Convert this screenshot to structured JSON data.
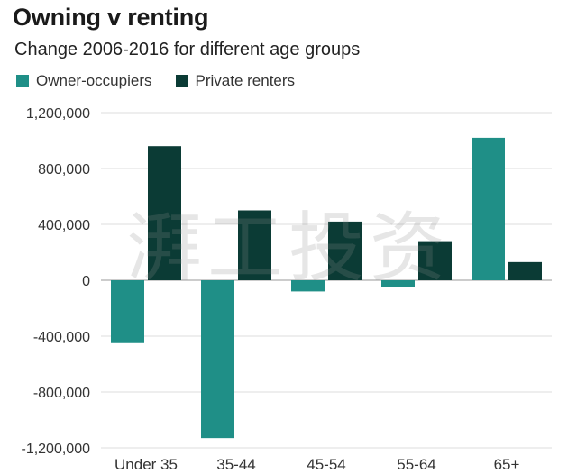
{
  "chart_data": {
    "type": "bar",
    "title": "Owning v renting",
    "subtitle": "Change 2006-2016 for different age groups",
    "categories": [
      "Under 35",
      "35-44",
      "45-54",
      "55-64",
      "65+"
    ],
    "series": [
      {
        "name": "Owner-occupiers",
        "color": "#1f8f87",
        "values": [
          -450000,
          -1130000,
          -80000,
          -50000,
          1020000
        ]
      },
      {
        "name": "Private renters",
        "color": "#0b3b35",
        "values": [
          960000,
          500000,
          420000,
          280000,
          130000
        ]
      }
    ],
    "ylim": [
      -1200000,
      1200000
    ],
    "yticks": [
      1200000,
      800000,
      400000,
      0,
      -400000,
      -800000,
      -1200000
    ],
    "ytick_labels": [
      "1,200,000",
      "800,000",
      "400,000",
      "0",
      "-400,000",
      "-800,000",
      "-1,200,000"
    ],
    "xlabel": "",
    "ylabel": "",
    "grid": true,
    "legend_position": "top-left",
    "watermark": "湃工投资"
  }
}
